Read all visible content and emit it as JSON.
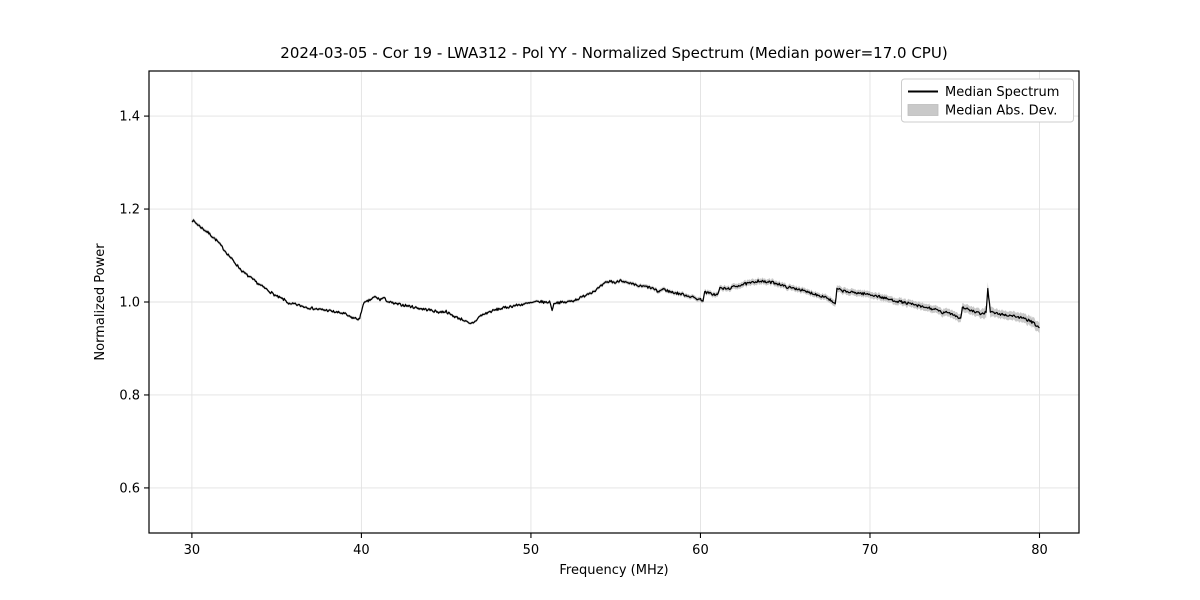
{
  "chart_data": {
    "type": "line",
    "title": "2024-03-05 - Cor 19 - LWA312 - Pol YY - Normalized Spectrum (Median power=17.0 CPU)",
    "xlabel": "Frequency (MHz)",
    "ylabel": "Normalized Power",
    "xlim": [
      27.47,
      82.33
    ],
    "ylim": [
      0.503,
      1.497
    ],
    "x_ticks": [
      "30",
      "40",
      "50",
      "60",
      "70",
      "80"
    ],
    "y_ticks": [
      "0.6",
      "0.8",
      "1.0",
      "1.2",
      "1.4"
    ],
    "grid": true,
    "legend": {
      "position": "upper right",
      "entries": [
        {
          "label": "Median Spectrum",
          "type": "line",
          "color": "#000000"
        },
        {
          "label": "Median Abs. Dev.",
          "type": "patch",
          "color": "#c9c9c9"
        }
      ]
    },
    "colors": {
      "line": "#000000",
      "band": "#c9c9c9",
      "grid": "#e2e2e2",
      "spine": "#000000",
      "background": "#ffffff",
      "legend_border": "#cccccc"
    },
    "noise_amplitude": 0.0028,
    "sample_step_mhz": 0.05,
    "series": [
      {
        "name": "Median Spectrum",
        "type": "line",
        "points": [
          [
            30.0,
            1.177
          ],
          [
            30.3,
            1.168
          ],
          [
            30.6,
            1.159
          ],
          [
            31.0,
            1.148
          ],
          [
            31.5,
            1.131
          ],
          [
            32.0,
            1.108
          ],
          [
            32.5,
            1.086
          ],
          [
            33.0,
            1.065
          ],
          [
            33.5,
            1.051
          ],
          [
            34.0,
            1.037
          ],
          [
            34.5,
            1.025
          ],
          [
            35.0,
            1.012
          ],
          [
            35.5,
            1.004
          ],
          [
            35.8,
            0.994
          ],
          [
            36.0,
            0.996
          ],
          [
            36.5,
            0.991
          ],
          [
            37.0,
            0.987
          ],
          [
            37.5,
            0.984
          ],
          [
            38.0,
            0.982
          ],
          [
            38.5,
            0.978
          ],
          [
            39.0,
            0.975
          ],
          [
            39.3,
            0.968
          ],
          [
            39.6,
            0.965
          ],
          [
            39.9,
            0.963
          ],
          [
            40.1,
            0.996
          ],
          [
            40.4,
            1.002
          ],
          [
            40.8,
            1.011
          ],
          [
            41.1,
            1.005
          ],
          [
            41.3,
            1.009
          ],
          [
            41.6,
            1.0
          ],
          [
            42.0,
            0.996
          ],
          [
            42.7,
            0.992
          ],
          [
            43.2,
            0.988
          ],
          [
            43.6,
            0.985
          ],
          [
            44.0,
            0.983
          ],
          [
            44.6,
            0.978
          ],
          [
            45.0,
            0.98
          ],
          [
            45.2,
            0.974
          ],
          [
            45.6,
            0.967
          ],
          [
            46.0,
            0.962
          ],
          [
            46.4,
            0.952
          ],
          [
            46.7,
            0.958
          ],
          [
            47.0,
            0.97
          ],
          [
            47.5,
            0.978
          ],
          [
            48.0,
            0.984
          ],
          [
            48.5,
            0.988
          ],
          [
            49.0,
            0.992
          ],
          [
            49.5,
            0.995
          ],
          [
            50.0,
            0.998
          ],
          [
            50.5,
            1.001
          ],
          [
            50.9,
            0.999
          ],
          [
            51.1,
            1.001
          ],
          [
            51.25,
            0.984
          ],
          [
            51.4,
            0.999
          ],
          [
            52.0,
            0.999
          ],
          [
            52.5,
            1.003
          ],
          [
            53.0,
            1.01
          ],
          [
            53.3,
            1.017
          ],
          [
            53.7,
            1.023
          ],
          [
            54.0,
            1.03
          ],
          [
            54.4,
            1.041
          ],
          [
            54.7,
            1.045
          ],
          [
            55.0,
            1.041
          ],
          [
            55.3,
            1.048
          ],
          [
            55.7,
            1.04
          ],
          [
            56.0,
            1.038
          ],
          [
            56.4,
            1.034
          ],
          [
            56.8,
            1.033
          ],
          [
            57.2,
            1.029
          ],
          [
            57.5,
            1.022
          ],
          [
            57.8,
            1.028
          ],
          [
            58.2,
            1.022
          ],
          [
            58.6,
            1.019
          ],
          [
            59.0,
            1.016
          ],
          [
            59.4,
            1.012
          ],
          [
            59.8,
            1.007
          ],
          [
            60.15,
            1.004
          ],
          [
            60.25,
            1.021
          ],
          [
            60.6,
            1.018
          ],
          [
            61.0,
            1.015
          ],
          [
            61.15,
            1.03
          ],
          [
            61.6,
            1.028
          ],
          [
            62.0,
            1.033
          ],
          [
            62.5,
            1.038
          ],
          [
            63.0,
            1.041
          ],
          [
            63.4,
            1.046
          ],
          [
            63.8,
            1.043
          ],
          [
            64.3,
            1.042
          ],
          [
            64.7,
            1.038
          ],
          [
            65.0,
            1.033
          ],
          [
            65.4,
            1.03
          ],
          [
            65.8,
            1.028
          ],
          [
            66.2,
            1.022
          ],
          [
            66.6,
            1.019
          ],
          [
            67.0,
            1.014
          ],
          [
            67.4,
            1.011
          ],
          [
            67.7,
            1.003
          ],
          [
            67.95,
            0.994
          ],
          [
            68.05,
            1.028
          ],
          [
            68.4,
            1.024
          ],
          [
            68.8,
            1.021
          ],
          [
            69.2,
            1.02
          ],
          [
            69.6,
            1.018
          ],
          [
            70.0,
            1.016
          ],
          [
            70.4,
            1.013
          ],
          [
            70.8,
            1.009
          ],
          [
            71.2,
            1.005
          ],
          [
            71.6,
            1.002
          ],
          [
            72.0,
            0.999
          ],
          [
            72.5,
            0.995
          ],
          [
            73.0,
            0.99
          ],
          [
            73.5,
            0.987
          ],
          [
            74.0,
            0.982
          ],
          [
            74.3,
            0.976
          ],
          [
            74.6,
            0.978
          ],
          [
            75.0,
            0.972
          ],
          [
            75.35,
            0.964
          ],
          [
            75.45,
            0.989
          ],
          [
            75.8,
            0.984
          ],
          [
            76.2,
            0.978
          ],
          [
            76.6,
            0.974
          ],
          [
            76.85,
            0.979
          ],
          [
            76.95,
            1.029
          ],
          [
            77.1,
            0.979
          ],
          [
            77.5,
            0.975
          ],
          [
            78.0,
            0.972
          ],
          [
            78.5,
            0.97
          ],
          [
            79.0,
            0.965
          ],
          [
            79.4,
            0.96
          ],
          [
            79.7,
            0.953
          ],
          [
            80.0,
            0.944
          ]
        ]
      },
      {
        "name": "Median Abs. Dev.",
        "type": "band",
        "half_width_points": [
          [
            30.0,
            0.004
          ],
          [
            32.0,
            0.0035
          ],
          [
            35.0,
            0.003
          ],
          [
            40.0,
            0.003
          ],
          [
            45.0,
            0.003
          ],
          [
            50.0,
            0.003
          ],
          [
            53.0,
            0.0035
          ],
          [
            56.0,
            0.004
          ],
          [
            59.0,
            0.0045
          ],
          [
            60.3,
            0.005
          ],
          [
            63.0,
            0.0065
          ],
          [
            65.0,
            0.006
          ],
          [
            67.0,
            0.006
          ],
          [
            68.0,
            0.007
          ],
          [
            70.0,
            0.007
          ],
          [
            72.0,
            0.0075
          ],
          [
            74.0,
            0.008
          ],
          [
            75.5,
            0.009
          ],
          [
            76.5,
            0.009
          ],
          [
            76.95,
            0.014
          ],
          [
            77.3,
            0.009
          ],
          [
            78.0,
            0.009
          ],
          [
            79.0,
            0.01
          ],
          [
            80.0,
            0.011
          ]
        ]
      }
    ]
  }
}
